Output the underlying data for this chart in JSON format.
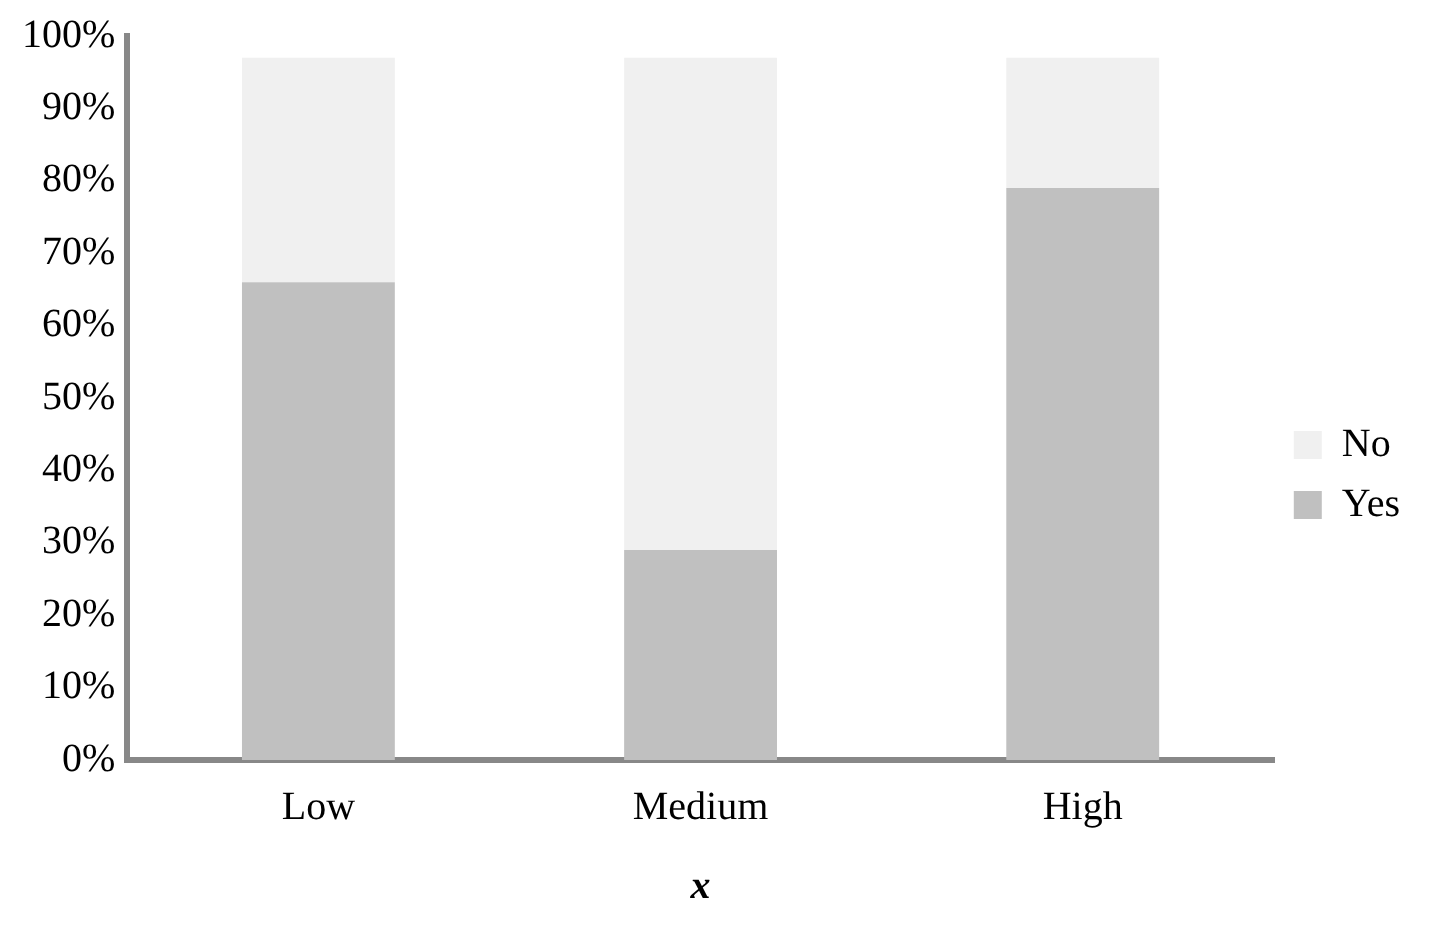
{
  "chart_data": {
    "type": "bar",
    "stacked": true,
    "xlabel": "x",
    "categories": [
      "Low",
      "Medium",
      "High"
    ],
    "series": [
      {
        "name": "Yes",
        "color": "#c0c0c0",
        "values": [
          66,
          29,
          79
        ]
      },
      {
        "name": "No",
        "color": "#f0f0f0",
        "values": [
          31,
          68,
          18
        ]
      }
    ],
    "ylim": [
      0,
      100
    ],
    "yticks": [
      {
        "value": 0,
        "label": "0%"
      },
      {
        "value": 10,
        "label": "10%"
      },
      {
        "value": 20,
        "label": "20%"
      },
      {
        "value": 30,
        "label": "30%"
      },
      {
        "value": 40,
        "label": "40%"
      },
      {
        "value": 50,
        "label": "50%"
      },
      {
        "value": 60,
        "label": "60%"
      },
      {
        "value": 70,
        "label": "70%"
      },
      {
        "value": 80,
        "label": "80%"
      },
      {
        "value": 90,
        "label": "90%"
      },
      {
        "value": 100,
        "label": "100%"
      }
    ],
    "grid": false,
    "legend": "right"
  }
}
